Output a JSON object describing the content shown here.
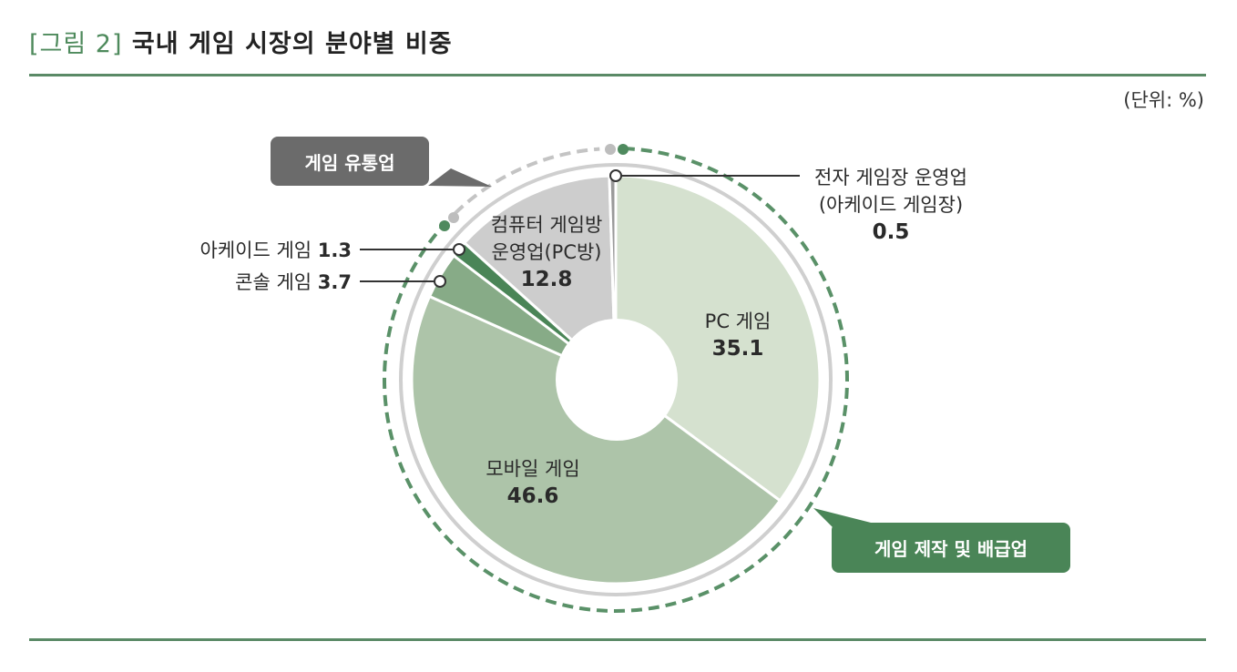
{
  "header": {
    "figure_label": "[그림 2]",
    "title": "국내 게임 시장의 분야별 비중",
    "unit": "(단위: %)"
  },
  "colors": {
    "accent_green": "#4a8557",
    "rule_green": "#5a8a66",
    "callout_gray": "#6b6b6b",
    "ring_gray": "#cfcfcf",
    "dash_green": "#5a9168",
    "dash_gray": "#c4c4c4"
  },
  "callouts": {
    "distribution": "게임 유통업",
    "production": "게임 제작 및 배급업"
  },
  "labels": {
    "pc_game": {
      "name": "PC 게임",
      "value": "35.1"
    },
    "mobile_game": {
      "name": "모바일 게임",
      "value": "46.6"
    },
    "pc_bang": {
      "name_line1": "컴퓨터 게임방",
      "name_line2": "운영업(PC방)",
      "value": "12.8"
    },
    "arcade_site": {
      "name_line1": "전자 게임장 운영업",
      "name_line2": "(아케이드 게임장)",
      "value": "0.5"
    },
    "arcade_game": {
      "name": "아케이드 게임",
      "value": "1.3"
    },
    "console_game": {
      "name": "콘솔 게임",
      "value": "3.7"
    }
  },
  "chart_data": {
    "type": "pie",
    "subtype": "donut",
    "title": "국내 게임 시장의 분야별 비중",
    "unit": "%",
    "categories": [
      "PC 게임",
      "모바일 게임",
      "콘솔 게임",
      "아케이드 게임",
      "컴퓨터 게임방 운영업(PC방)",
      "전자 게임장 운영업(아케이드 게임장)"
    ],
    "values": [
      35.1,
      46.6,
      3.7,
      1.3,
      12.8,
      0.5
    ],
    "slice_colors": [
      "#d5e1cf",
      "#adc4a9",
      "#87ab87",
      "#4a8557",
      "#cdcdcd",
      "#9a9a9a"
    ],
    "start_angle_deg": 0,
    "direction": "clockwise",
    "groups": [
      {
        "name": "게임 제작 및 배급업",
        "members": [
          "PC 게임",
          "모바일 게임",
          "콘솔 게임",
          "아케이드 게임"
        ]
      },
      {
        "name": "게임 유통업",
        "members": [
          "컴퓨터 게임방 운영업(PC방)",
          "전자 게임장 운영업(아케이드 게임장)"
        ]
      }
    ]
  }
}
